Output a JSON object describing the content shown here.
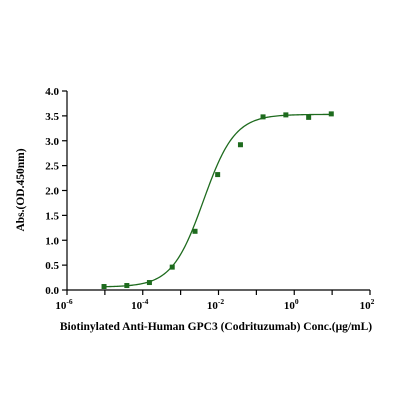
{
  "chart_data": {
    "type": "scatter",
    "xlabel": "Biotinylated Anti-Human GPC3 (Codrituzumab) Conc.(μg/mL)",
    "ylabel": "Abs.(OD.450nm)",
    "x_scale": "log10",
    "xlim": [
      1e-06,
      100
    ],
    "ylim": [
      0,
      4.0
    ],
    "x_ticks": [
      {
        "base": "10",
        "exp": "-6"
      },
      {
        "base": "10",
        "exp": "-4"
      },
      {
        "base": "10",
        "exp": "-2"
      },
      {
        "base": "10",
        "exp": "0"
      },
      {
        "base": "10",
        "exp": "2"
      }
    ],
    "y_ticks": [
      "0.0",
      "0.5",
      "1.0",
      "1.5",
      "2.0",
      "2.5",
      "3.0",
      "3.5",
      "4.0"
    ],
    "grid": false,
    "legend": "none",
    "colors": {
      "series": "#1e6b1e",
      "axis": "#000000"
    },
    "series": [
      {
        "marker": "square",
        "points": [
          {
            "x": 9.5e-06,
            "y": 0.07
          },
          {
            "x": 3.8e-05,
            "y": 0.09
          },
          {
            "x": 0.00015,
            "y": 0.15
          },
          {
            "x": 0.0006,
            "y": 0.46
          },
          {
            "x": 0.0024,
            "y": 1.18
          },
          {
            "x": 0.0095,
            "y": 2.32
          },
          {
            "x": 0.038,
            "y": 2.92
          },
          {
            "x": 0.15,
            "y": 3.48
          },
          {
            "x": 0.6,
            "y": 3.52
          },
          {
            "x": 2.4,
            "y": 3.47
          },
          {
            "x": 9.5,
            "y": 3.54
          }
        ],
        "fit": {
          "type": "4PL",
          "bottom": 0.06,
          "top": 3.53,
          "ec50": 0.004,
          "hill": 1.05
        }
      }
    ]
  }
}
